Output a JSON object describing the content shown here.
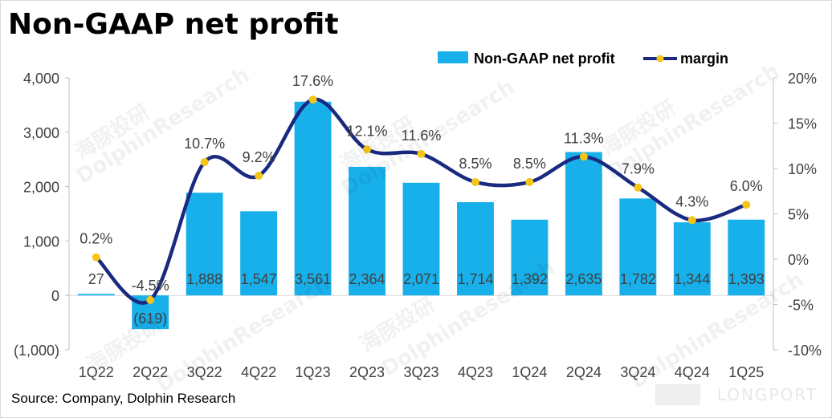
{
  "title": "Non-GAAP net profit",
  "source": "Source: Company, Dolphin Research",
  "watermarks": [
    "DolphinResearch",
    "海豚投研"
  ],
  "brand": "LONGPORT",
  "colors": {
    "bar": "#18b0ea",
    "line": "#1a2a80",
    "marker": "#f5c518"
  },
  "chart_data": {
    "type": "bar",
    "categories": [
      "1Q22",
      "2Q22",
      "3Q22",
      "4Q22",
      "1Q23",
      "2Q23",
      "3Q23",
      "4Q23",
      "1Q24",
      "2Q24",
      "3Q24",
      "4Q24",
      "1Q25"
    ],
    "series": [
      {
        "name": "Non-GAAP net profit",
        "type": "bar",
        "axis": "left",
        "values": [
          27,
          -619,
          1888,
          1547,
          3561,
          2364,
          2071,
          1714,
          1392,
          2635,
          1782,
          1344,
          1393
        ],
        "labels": [
          "27",
          "(619)",
          "1,888",
          "1,547",
          "3,561",
          "2,364",
          "2,071",
          "1,714",
          "1,392",
          "2,635",
          "1,782",
          "1,344",
          "1,393"
        ]
      },
      {
        "name": "margin",
        "type": "line",
        "axis": "right",
        "values": [
          0.2,
          -4.5,
          10.7,
          9.2,
          17.6,
          12.1,
          11.6,
          8.5,
          8.5,
          11.3,
          7.9,
          4.3,
          6.0
        ],
        "labels": [
          "0.2%",
          "-4.5%",
          "10.7%",
          "9.2%",
          "17.6%",
          "12.1%",
          "11.6%",
          "8.5%",
          "8.5%",
          "11.3%",
          "7.9%",
          "4.3%",
          "6.0%"
        ]
      }
    ],
    "y_left": {
      "ylim": [
        -1000,
        4000
      ],
      "ticks": [
        -1000,
        0,
        1000,
        2000,
        3000,
        4000
      ],
      "tick_labels": [
        "(1,000)",
        "0",
        "1,000",
        "2,000",
        "3,000",
        "4,000"
      ]
    },
    "y_right": {
      "ylim": [
        -10,
        20
      ],
      "ticks": [
        -10,
        -5,
        0,
        5,
        10,
        15,
        20
      ],
      "tick_labels": [
        "-10%",
        "-5%",
        "0%",
        "5%",
        "10%",
        "15%",
        "20%"
      ]
    },
    "legend": {
      "position": "top-right",
      "items": [
        "Non-GAAP net profit",
        "margin"
      ]
    },
    "grid": false
  }
}
